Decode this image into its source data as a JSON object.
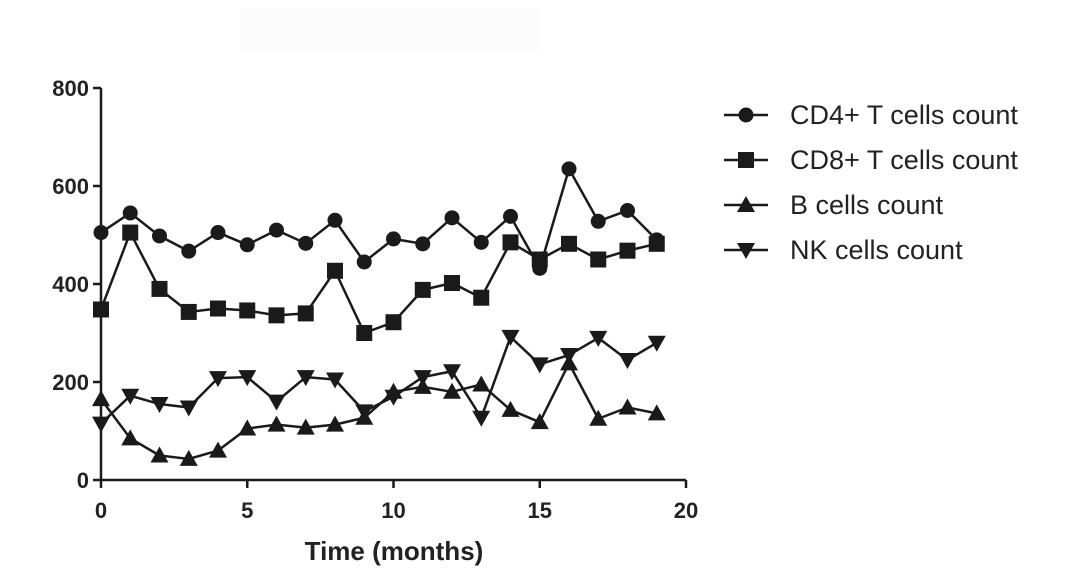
{
  "chart_data": {
    "type": "line",
    "xlabel": "Time (months)",
    "ylabel": "",
    "xlim": [
      0,
      20
    ],
    "ylim": [
      0,
      800
    ],
    "xticks": [
      0,
      5,
      10,
      15,
      20
    ],
    "yticks": [
      0,
      200,
      400,
      600,
      800
    ],
    "grid": false,
    "legend_position": "right",
    "line_color": "#1a1a1a",
    "x": [
      0,
      1,
      2,
      3,
      4,
      5,
      6,
      7,
      8,
      9,
      10,
      11,
      12,
      13,
      14,
      15,
      16,
      17,
      18,
      19
    ],
    "series": [
      {
        "name": "CD4+ T cells count",
        "marker": "circle",
        "values": [
          505,
          545,
          498,
          467,
          505,
          480,
          510,
          483,
          530,
          445,
          492,
          482,
          535,
          485,
          538,
          432,
          635,
          528,
          550,
          490
        ]
      },
      {
        "name": "CD8+ T cells count",
        "marker": "square",
        "values": [
          348,
          505,
          390,
          343,
          350,
          346,
          336,
          340,
          427,
          300,
          322,
          388,
          402,
          372,
          485,
          450,
          482,
          450,
          468,
          482
        ]
      },
      {
        "name": "B cells count",
        "marker": "triangle-up",
        "values": [
          165,
          85,
          50,
          43,
          60,
          105,
          113,
          107,
          113,
          127,
          180,
          190,
          180,
          195,
          143,
          118,
          238,
          125,
          148,
          136
        ]
      },
      {
        "name": "NK cells count",
        "marker": "triangle-down",
        "values": [
          115,
          172,
          155,
          148,
          208,
          210,
          160,
          210,
          205,
          140,
          170,
          210,
          222,
          127,
          292,
          236,
          255,
          290,
          245,
          280
        ]
      }
    ]
  }
}
